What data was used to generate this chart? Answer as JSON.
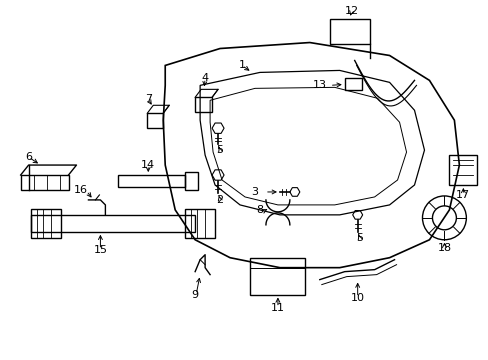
{
  "background_color": "#ffffff",
  "line_color": "#000000",
  "lw": 1.0,
  "fs": 8,
  "fig_width": 4.89,
  "fig_height": 3.6,
  "dpi": 100
}
